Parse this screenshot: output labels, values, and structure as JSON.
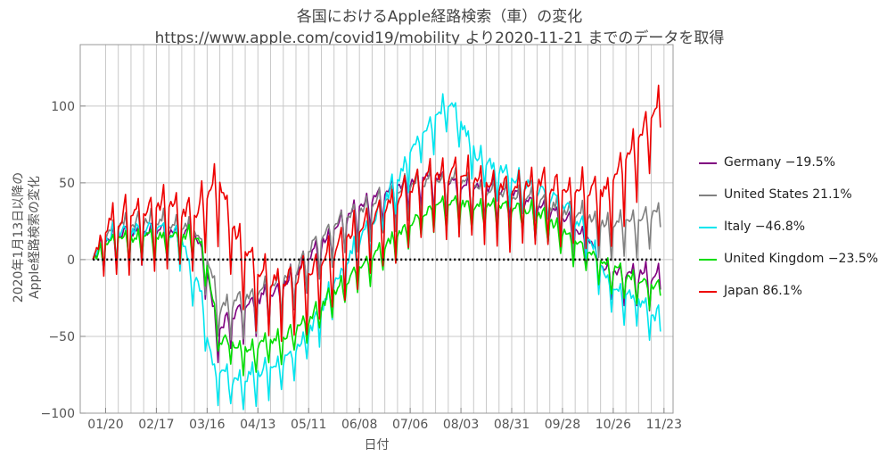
{
  "chart_data": {
    "type": "line",
    "title": "各国におけるApple経路検索（車）の変化",
    "subtitle": "https://www.apple.com/covid19/mobility より2020-11-21 までのデータを取得",
    "xlabel": "日付",
    "ylabel_lines": [
      "2020年1月13日以降の",
      "Apple経路検索の変化"
    ],
    "ylim": [
      -100,
      140
    ],
    "yticks": [
      -100,
      -50,
      0,
      50,
      100
    ],
    "x_start": "2020-01-13",
    "x_end": "2020-11-21",
    "xticks": [
      "01/20",
      "02/17",
      "03/16",
      "04/13",
      "05/11",
      "06/08",
      "07/06",
      "08/03",
      "08/31",
      "09/28",
      "10/26",
      "11/23"
    ],
    "grid": "weekly vertical lines, horizontal at y ticks",
    "baseline": 0,
    "legend_position": "right",
    "series": [
      {
        "name": "Germany",
        "legend": "Germany −19.5%",
        "color": "#800080",
        "final": -19.5,
        "keypoints": [
          [
            0,
            0
          ],
          [
            14,
            8
          ],
          [
            35,
            10
          ],
          [
            56,
            8
          ],
          [
            63,
            -15
          ],
          [
            68,
            -55
          ],
          [
            77,
            -45
          ],
          [
            91,
            -35
          ],
          [
            105,
            -25
          ],
          [
            119,
            -8
          ],
          [
            133,
            12
          ],
          [
            147,
            25
          ],
          [
            161,
            35
          ],
          [
            175,
            43
          ],
          [
            189,
            45
          ],
          [
            203,
            40
          ],
          [
            217,
            38
          ],
          [
            231,
            35
          ],
          [
            245,
            25
          ],
          [
            259,
            20
          ],
          [
            273,
            5
          ],
          [
            283,
            -15
          ],
          [
            313,
            -19.5
          ]
        ],
        "week_amp": 12,
        "noise": 3
      },
      {
        "name": "United States",
        "legend": "United States 21.1%",
        "color": "#808080",
        "final": 21.1,
        "keypoints": [
          [
            0,
            0
          ],
          [
            14,
            12
          ],
          [
            35,
            15
          ],
          [
            56,
            10
          ],
          [
            63,
            -10
          ],
          [
            70,
            -42
          ],
          [
            84,
            -35
          ],
          [
            98,
            -28
          ],
          [
            112,
            -18
          ],
          [
            119,
            -3
          ],
          [
            133,
            12
          ],
          [
            147,
            22
          ],
          [
            161,
            30
          ],
          [
            175,
            38
          ],
          [
            189,
            42
          ],
          [
            203,
            40
          ],
          [
            217,
            35
          ],
          [
            231,
            32
          ],
          [
            245,
            28
          ],
          [
            259,
            22
          ],
          [
            273,
            18
          ],
          [
            283,
            12
          ],
          [
            313,
            21.1
          ]
        ],
        "week_amp": 14,
        "noise": 3
      },
      {
        "name": "Italy",
        "legend": "Italy −46.8%",
        "color": "#00e5ee",
        "final": -46.8,
        "keypoints": [
          [
            0,
            0
          ],
          [
            14,
            10
          ],
          [
            35,
            12
          ],
          [
            49,
            5
          ],
          [
            54,
            -15
          ],
          [
            60,
            -30
          ],
          [
            66,
            -80
          ],
          [
            77,
            -85
          ],
          [
            91,
            -82
          ],
          [
            105,
            -75
          ],
          [
            119,
            -55
          ],
          [
            133,
            -25
          ],
          [
            147,
            5
          ],
          [
            161,
            30
          ],
          [
            175,
            60
          ],
          [
            189,
            85
          ],
          [
            196,
            95
          ],
          [
            203,
            80
          ],
          [
            212,
            60
          ],
          [
            231,
            45
          ],
          [
            245,
            38
          ],
          [
            259,
            28
          ],
          [
            273,
            10
          ],
          [
            283,
            -20
          ],
          [
            313,
            -46.8
          ]
        ],
        "week_amp": 11,
        "noise": 4
      },
      {
        "name": "United Kingdom",
        "legend": "United Kingdom −23.5%",
        "color": "#00dd00",
        "final": -23.5,
        "keypoints": [
          [
            0,
            0
          ],
          [
            14,
            8
          ],
          [
            35,
            8
          ],
          [
            56,
            10
          ],
          [
            63,
            -10
          ],
          [
            70,
            -58
          ],
          [
            84,
            -65
          ],
          [
            98,
            -60
          ],
          [
            112,
            -52
          ],
          [
            119,
            -45
          ],
          [
            133,
            -28
          ],
          [
            147,
            -12
          ],
          [
            161,
            2
          ],
          [
            175,
            18
          ],
          [
            189,
            28
          ],
          [
            203,
            30
          ],
          [
            217,
            28
          ],
          [
            231,
            28
          ],
          [
            245,
            25
          ],
          [
            259,
            12
          ],
          [
            273,
            -2
          ],
          [
            283,
            -10
          ],
          [
            298,
            -20
          ],
          [
            313,
            -23.5
          ]
        ],
        "week_amp": 9,
        "noise": 3
      },
      {
        "name": "Japan",
        "legend": "Japan 86.1%",
        "color": "#ee0000",
        "final": 86.1,
        "keypoints": [
          [
            0,
            0
          ],
          [
            21,
            15
          ],
          [
            42,
            20
          ],
          [
            56,
            12
          ],
          [
            63,
            30
          ],
          [
            70,
            35
          ],
          [
            77,
            5
          ],
          [
            91,
            -25
          ],
          [
            105,
            -30
          ],
          [
            119,
            -25
          ],
          [
            133,
            -10
          ],
          [
            147,
            5
          ],
          [
            161,
            18
          ],
          [
            175,
            30
          ],
          [
            189,
            38
          ],
          [
            203,
            40
          ],
          [
            217,
            35
          ],
          [
            231,
            30
          ],
          [
            245,
            35
          ],
          [
            259,
            30
          ],
          [
            273,
            30
          ],
          [
            283,
            28
          ],
          [
            313,
            86.1
          ]
        ],
        "week_amp": 22,
        "noise": 4
      }
    ]
  }
}
